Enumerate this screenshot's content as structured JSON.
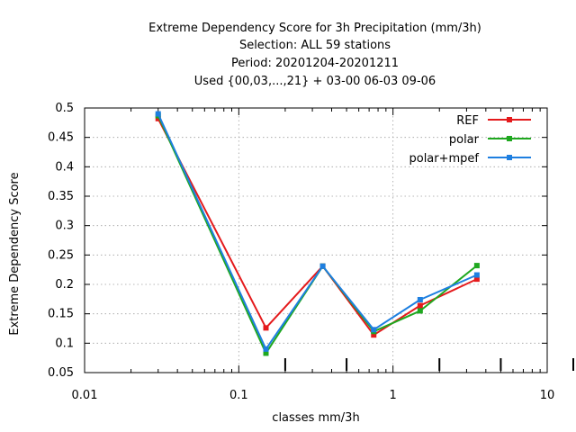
{
  "chart_data": {
    "type": "line",
    "title_lines": [
      "Extreme Dependency Score  for 3h Precipitation (mm/3h)",
      "Selection: ALL     59 stations",
      "Period: 20201204-20201211",
      "Used {00,03,...,21} + 03-00 06-03 09-06"
    ],
    "xlabel": "classes mm/3h",
    "ylabel": "Extreme Dependency Score",
    "xscale": "log",
    "xlim": [
      0.01,
      10
    ],
    "ylim": [
      0.05,
      0.5
    ],
    "xticks": [
      0.01,
      0.1,
      1,
      10
    ],
    "xtick_labels": [
      "0.01",
      "0.1",
      "1",
      "10"
    ],
    "yticks": [
      0.05,
      0.1,
      0.15,
      0.2,
      0.25,
      0.3,
      0.35,
      0.4,
      0.45,
      0.5
    ],
    "ytick_labels": [
      "0.05",
      "0.1",
      "0.15",
      "0.2",
      "0.25",
      "0.3",
      "0.35",
      "0.4",
      "0.45",
      "0.5"
    ],
    "grid": true,
    "legend_position": "top-right",
    "x": [
      0.03,
      0.15,
      0.35,
      0.75,
      1.5,
      3.5
    ],
    "series": [
      {
        "name": "REF",
        "color": "#e41a1c",
        "values": [
          0.482,
          0.126,
          0.231,
          0.114,
          0.164,
          0.209
        ]
      },
      {
        "name": "polar",
        "color": "#1fa81f",
        "values": [
          0.487,
          0.083,
          0.231,
          0.12,
          0.155,
          0.232
        ]
      },
      {
        "name": "polar+mpef",
        "color": "#1e7fe0",
        "values": [
          0.49,
          0.09,
          0.231,
          0.123,
          0.174,
          0.216
        ]
      }
    ]
  }
}
